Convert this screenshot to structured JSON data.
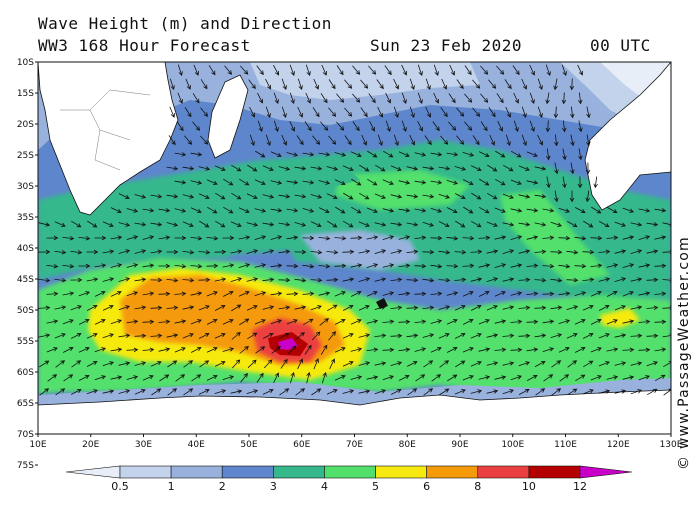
{
  "header": {
    "title": "Wave Height (m) and Direction",
    "model": "WW3 168 Hour Forecast",
    "date": "Sun 23 Feb 2020",
    "time": "00 UTC"
  },
  "credit": "© www.PassageWeather.com",
  "axes": {
    "lat_labels": [
      "10S",
      "15S",
      "20S",
      "25S",
      "30S",
      "35S",
      "40S",
      "45S",
      "50S",
      "55S",
      "60S",
      "65S",
      "70S",
      "75S"
    ],
    "lon_labels": [
      "10E",
      "20E",
      "30E",
      "40E",
      "50E",
      "60E",
      "70E",
      "80E",
      "90E",
      "100E",
      "110E",
      "120E",
      "130E"
    ]
  },
  "legend": {
    "unit": "m",
    "thresholds": [
      "0.5",
      "1",
      "2",
      "3",
      "4",
      "5",
      "6",
      "8",
      "10",
      "12"
    ],
    "colors": [
      "#e8eef8",
      "#c4d3ec",
      "#98b2dd",
      "#5e86cc",
      "#34b88c",
      "#52e06c",
      "#f6ea10",
      "#f59a08",
      "#ec4040",
      "#b40000",
      "#c800c8"
    ]
  },
  "map": {
    "land_color": "#ffffff",
    "ice_color": "#ffffff",
    "max_wave_area": "58E 60S",
    "arrow_color": "#111111"
  }
}
